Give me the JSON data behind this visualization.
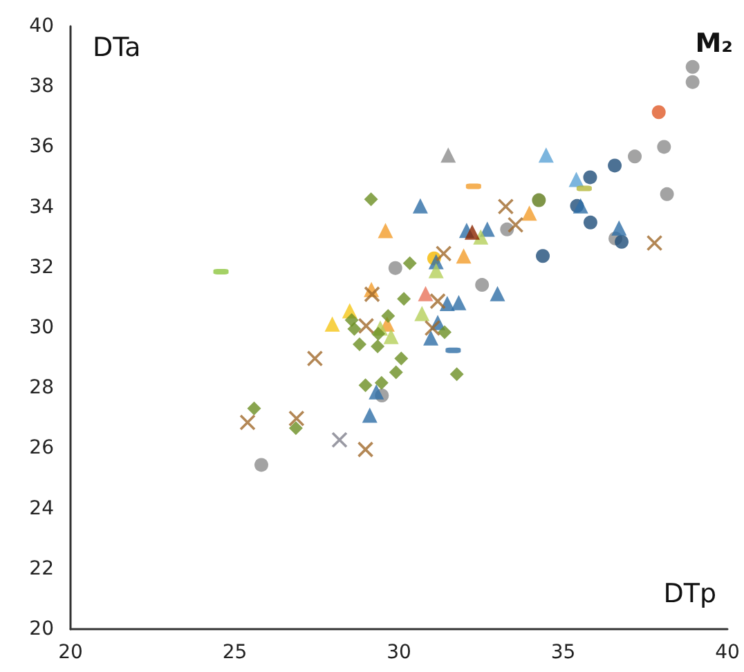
{
  "chart_data": {
    "type": "scatter",
    "title": "M₂",
    "xlabel": "DTp",
    "ylabel": "DTa",
    "xlim": [
      20,
      40
    ],
    "xticks": [
      20,
      25,
      30,
      35,
      40
    ],
    "ylim": [
      20,
      40
    ],
    "yticks": [
      20,
      22,
      24,
      26,
      28,
      30,
      32,
      34,
      36,
      38,
      40
    ],
    "grid": false,
    "series": [
      {
        "color": "#8c8c8c",
        "marker": "circle",
        "x": [
          38.94,
          38.94,
          38.07,
          38.16,
          37.18,
          33.29,
          36.59,
          32.53,
          29.89,
          29.48,
          25.81
        ],
        "values": [
          38.65,
          38.15,
          36.0,
          34.43,
          35.68,
          33.26,
          32.96,
          31.42,
          31.98,
          27.75,
          25.45
        ]
      },
      {
        "color": "#e05a28",
        "marker": "circle",
        "x": [
          37.91
        ],
        "values": [
          37.15
        ]
      },
      {
        "color": "#1f4e79",
        "marker": "circle",
        "x": [
          36.57,
          35.82,
          35.42,
          35.83,
          34.38,
          36.78
        ],
        "values": [
          35.38,
          34.99,
          34.04,
          33.49,
          32.38,
          32.85
        ]
      },
      {
        "color": "#5f7a1a",
        "marker": "circle",
        "x": [
          34.26
        ],
        "values": [
          34.23
        ]
      },
      {
        "color": "#f5b800",
        "marker": "circle",
        "x": [
          31.07
        ],
        "values": [
          32.3
        ]
      },
      {
        "color": "#2e6ea6",
        "marker": "triangle",
        "x": [
          30.65,
          32.06,
          32.69,
          36.7,
          35.53,
          31.13,
          31.47,
          31.82,
          33.0,
          31.18,
          30.97,
          29.31,
          29.11
        ],
        "values": [
          34.04,
          33.23,
          33.27,
          33.31,
          34.04,
          32.19,
          30.8,
          30.83,
          31.13,
          30.17,
          29.66,
          27.87,
          27.1
        ]
      },
      {
        "color": "#5ba3d6",
        "marker": "triangle",
        "x": [
          34.48,
          35.4
        ],
        "values": [
          35.73,
          34.92
        ]
      },
      {
        "color": "#8c8c8c",
        "marker": "triangle",
        "x": [
          31.5
        ],
        "values": [
          35.73
        ]
      },
      {
        "color": "#f39c2b",
        "marker": "triangle",
        "x": [
          29.59,
          31.97,
          33.97,
          29.16,
          29.64
        ],
        "values": [
          33.22,
          32.38,
          33.8,
          31.27,
          30.12
        ]
      },
      {
        "color": "#f5c518",
        "marker": "triangle",
        "x": [
          27.97,
          28.5
        ],
        "values": [
          30.12,
          30.56
        ]
      },
      {
        "color": "#b5cf5a",
        "marker": "triangle",
        "x": [
          30.7,
          29.76,
          29.43,
          32.49,
          31.13
        ],
        "values": [
          30.47,
          29.71,
          29.99,
          33.01,
          31.89
        ]
      },
      {
        "color": "#e8735a",
        "marker": "triangle",
        "x": [
          30.81
        ],
        "values": [
          31.13
        ]
      },
      {
        "color": "#8b2500",
        "marker": "triangle",
        "x": [
          32.23
        ],
        "values": [
          33.17
        ]
      },
      {
        "color": "#6b8e23",
        "marker": "diamond",
        "x": [
          29.15,
          30.33,
          30.15,
          29.67,
          28.56,
          28.64,
          28.8,
          29.37,
          29.35,
          30.07,
          29.91,
          29.47,
          28.98,
          31.39,
          31.76,
          25.59,
          26.86
        ],
        "values": [
          34.26,
          32.14,
          30.96,
          30.39,
          30.25,
          29.96,
          29.45,
          29.8,
          29.38,
          28.98,
          28.52,
          28.17,
          28.09,
          29.85,
          28.46,
          27.32,
          26.67
        ]
      },
      {
        "color": "#a0692a",
        "marker": "cross",
        "x": [
          33.25,
          33.55,
          37.78,
          31.36,
          29.18,
          31.18,
          29.0,
          31.02,
          27.44,
          25.39,
          26.88,
          28.98
        ],
        "values": [
          34.02,
          33.41,
          32.81,
          32.46,
          31.11,
          30.88,
          30.06,
          29.99,
          28.98,
          26.86,
          26.99,
          25.96
        ]
      },
      {
        "color": "#7f7f8c",
        "marker": "cross",
        "x": [
          28.19
        ],
        "values": [
          26.28
        ]
      },
      {
        "color": "#8dc63f",
        "x": [
          24.58
        ],
        "values": [
          31.86
        ]
      },
      {
        "color": "#f39c2b",
        "x": [
          32.27
        ],
        "values": [
          34.69
        ]
      },
      {
        "color": "#2e6ea6",
        "x": [
          31.65
        ],
        "values": [
          29.25
        ]
      },
      {
        "color": "#b5b83a",
        "x": [
          35.64
        ],
        "values": [
          34.62
        ]
      }
    ]
  }
}
